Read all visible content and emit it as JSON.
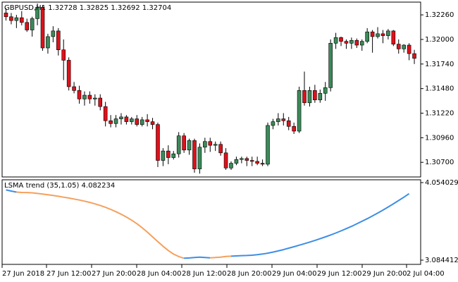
{
  "main_chart": {
    "header": "GBPUSD,H1  1.32728 1.32825 1.32692 1.32704",
    "price_labels": [
      "1.32260",
      "1.32000",
      "1.31740",
      "1.31480",
      "1.31220",
      "1.30960",
      "1.30700"
    ],
    "price_range": [
      1.3056,
      1.3238
    ],
    "colors": {
      "bull": "#3c8a5a",
      "bear": "#e0101a",
      "wick": "#000000",
      "frame": "#000000",
      "background": "#ffffff"
    },
    "candles": [
      [
        1.3228,
        1.3233,
        1.322,
        1.3224
      ],
      [
        1.3224,
        1.3228,
        1.3216,
        1.322
      ],
      [
        1.322,
        1.3226,
        1.3212,
        1.3223
      ],
      [
        1.3223,
        1.323,
        1.3215,
        1.3218
      ],
      [
        1.3218,
        1.3222,
        1.3208,
        1.321
      ],
      [
        1.321,
        1.3224,
        1.3203,
        1.3222
      ],
      [
        1.3222,
        1.3238,
        1.3215,
        1.3234
      ],
      [
        1.3234,
        1.3236,
        1.3188,
        1.3191
      ],
      [
        1.3191,
        1.3206,
        1.3185,
        1.3203
      ],
      [
        1.3203,
        1.3214,
        1.3197,
        1.3209
      ],
      [
        1.3209,
        1.3212,
        1.3183,
        1.3189
      ],
      [
        1.3189,
        1.32,
        1.3157,
        1.3178
      ],
      [
        1.3178,
        1.3181,
        1.3146,
        1.315
      ],
      [
        1.315,
        1.3155,
        1.3143,
        1.3146
      ],
      [
        1.3146,
        1.3151,
        1.3132,
        1.3137
      ],
      [
        1.3137,
        1.3145,
        1.313,
        1.3141
      ],
      [
        1.3141,
        1.3145,
        1.3132,
        1.3137
      ],
      [
        1.3137,
        1.3142,
        1.313,
        1.3138
      ],
      [
        1.3138,
        1.3142,
        1.3125,
        1.3129
      ],
      [
        1.3129,
        1.3134,
        1.3108,
        1.3114
      ],
      [
        1.3114,
        1.312,
        1.3107,
        1.3111
      ],
      [
        1.3111,
        1.312,
        1.3107,
        1.3116
      ],
      [
        1.3116,
        1.3122,
        1.311,
        1.3118
      ],
      [
        1.3118,
        1.312,
        1.311,
        1.3113
      ],
      [
        1.3113,
        1.3118,
        1.311,
        1.3116
      ],
      [
        1.3116,
        1.312,
        1.3108,
        1.311
      ],
      [
        1.311,
        1.3118,
        1.3108,
        1.3115
      ],
      [
        1.3115,
        1.3121,
        1.3108,
        1.3113
      ],
      [
        1.3113,
        1.3117,
        1.3105,
        1.311
      ],
      [
        1.311,
        1.3112,
        1.3065,
        1.3072
      ],
      [
        1.3072,
        1.3085,
        1.3066,
        1.3082
      ],
      [
        1.3082,
        1.3088,
        1.3068,
        1.3075
      ],
      [
        1.3075,
        1.3082,
        1.3073,
        1.3079
      ],
      [
        1.3079,
        1.3102,
        1.3075,
        1.3098
      ],
      [
        1.3098,
        1.3101,
        1.308,
        1.3083
      ],
      [
        1.3083,
        1.3095,
        1.3078,
        1.3093
      ],
      [
        1.3093,
        1.3095,
        1.3059,
        1.3063
      ],
      [
        1.3063,
        1.309,
        1.3058,
        1.3086
      ],
      [
        1.3086,
        1.3096,
        1.308,
        1.3092
      ],
      [
        1.3092,
        1.3096,
        1.3081,
        1.3088
      ],
      [
        1.3088,
        1.3092,
        1.3082,
        1.3089
      ],
      [
        1.3089,
        1.3092,
        1.3077,
        1.308
      ],
      [
        1.308,
        1.3085,
        1.3062,
        1.3064
      ],
      [
        1.3064,
        1.3071,
        1.3062,
        1.3069
      ],
      [
        1.3069,
        1.3076,
        1.3067,
        1.3073
      ],
      [
        1.3073,
        1.3076,
        1.3069,
        1.3074
      ],
      [
        1.3074,
        1.3076,
        1.3066,
        1.3072
      ],
      [
        1.3072,
        1.3076,
        1.3066,
        1.3071
      ],
      [
        1.3071,
        1.3076,
        1.3067,
        1.3069
      ],
      [
        1.3069,
        1.3073,
        1.3066,
        1.3068
      ],
      [
        1.3068,
        1.3112,
        1.3066,
        1.3109
      ],
      [
        1.3109,
        1.3116,
        1.3105,
        1.3113
      ],
      [
        1.3113,
        1.3122,
        1.3109,
        1.3116
      ],
      [
        1.3116,
        1.3122,
        1.3109,
        1.3114
      ],
      [
        1.3114,
        1.3118,
        1.3104,
        1.3108
      ],
      [
        1.3108,
        1.3112,
        1.31,
        1.3103
      ],
      [
        1.3103,
        1.315,
        1.3101,
        1.3146
      ],
      [
        1.3146,
        1.3166,
        1.313,
        1.3133
      ],
      [
        1.3133,
        1.315,
        1.3129,
        1.3146
      ],
      [
        1.3146,
        1.3152,
        1.3133,
        1.3136
      ],
      [
        1.3136,
        1.3147,
        1.3133,
        1.3143
      ],
      [
        1.3143,
        1.3155,
        1.3135,
        1.3149
      ],
      [
        1.3149,
        1.32,
        1.3145,
        1.3196
      ],
      [
        1.3196,
        1.3207,
        1.319,
        1.3202
      ],
      [
        1.3202,
        1.3203,
        1.3193,
        1.3198
      ],
      [
        1.3198,
        1.32,
        1.319,
        1.3196
      ],
      [
        1.3196,
        1.3202,
        1.319,
        1.3199
      ],
      [
        1.3199,
        1.3201,
        1.3191,
        1.3194
      ],
      [
        1.3194,
        1.32,
        1.3188,
        1.3198
      ],
      [
        1.3198,
        1.3212,
        1.3196,
        1.3208
      ],
      [
        1.3208,
        1.321,
        1.3186,
        1.3203
      ],
      [
        1.3203,
        1.3213,
        1.3201,
        1.3206
      ],
      [
        1.3206,
        1.321,
        1.3196,
        1.3204
      ],
      [
        1.3204,
        1.3211,
        1.32,
        1.3209
      ],
      [
        1.3209,
        1.321,
        1.3193,
        1.3195
      ],
      [
        1.3195,
        1.32,
        1.3185,
        1.319
      ],
      [
        1.319,
        1.3195,
        1.3186,
        1.3194
      ],
      [
        1.3194,
        1.3196,
        1.3178,
        1.3185
      ],
      [
        1.3185,
        1.3189,
        1.3174,
        1.318
      ]
    ]
  },
  "indicator": {
    "header": "LSMA trend (35,1.05) 4.082234",
    "scale_top": "4.054029",
    "scale_bottom": "3.084412",
    "value_range": [
      3.084412,
      4.054029
    ],
    "colors": {
      "down": "#f5a05c",
      "up": "#3d8ee6"
    },
    "series": [
      {
        "trend": "up",
        "values": [
          3.962,
          3.948,
          3.935
        ]
      },
      {
        "trend": "down",
        "values": [
          3.935,
          3.931,
          3.93,
          3.926,
          3.918,
          3.91,
          3.902,
          3.893,
          3.883,
          3.872,
          3.861,
          3.849,
          3.836,
          3.822,
          3.806,
          3.788,
          3.768,
          3.745,
          3.719,
          3.69,
          3.658,
          3.623,
          3.584,
          3.54,
          3.49,
          3.434,
          3.375,
          3.316,
          3.258,
          3.205,
          3.16,
          3.129,
          3.108
        ]
      },
      {
        "trend": "up",
        "values": [
          3.108,
          3.112,
          3.118,
          3.121,
          3.118,
          3.113
        ]
      },
      {
        "trend": "down",
        "values": [
          3.113,
          3.117,
          3.122,
          3.13,
          3.134
        ]
      },
      {
        "trend": "up",
        "values": [
          3.134,
          3.137,
          3.141,
          3.143,
          3.146,
          3.152,
          3.161,
          3.172,
          3.185,
          3.2,
          3.216,
          3.234,
          3.252,
          3.271,
          3.29,
          3.31,
          3.33,
          3.352,
          3.375,
          3.399,
          3.424,
          3.45,
          3.478,
          3.507,
          3.538,
          3.57,
          3.603,
          3.637,
          3.673,
          3.71,
          3.749,
          3.789,
          3.83,
          3.872,
          3.916
        ]
      }
    ]
  },
  "time_axis": {
    "labels": [
      "27 Jun 2018",
      "27 Jun 12:00",
      "27 Jun 20:00",
      "28 Jun 04:00",
      "28 Jun 12:00",
      "28 Jun 20:00",
      "29 Jun 04:00",
      "29 Jun 12:00",
      "29 Jun 20:00",
      "2 Jul 04:00"
    ]
  }
}
